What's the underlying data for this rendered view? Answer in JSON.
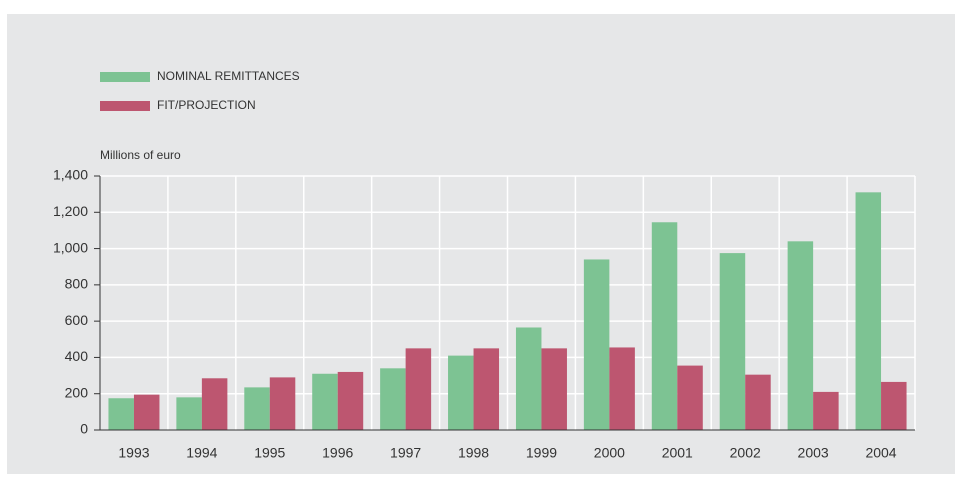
{
  "chart_data": {
    "type": "bar",
    "y_axis_label": "Millions of euro",
    "categories": [
      "1993",
      "1994",
      "1995",
      "1996",
      "1997",
      "1998",
      "1999",
      "2000",
      "2001",
      "2002",
      "2003",
      "2004"
    ],
    "series": [
      {
        "name": "NOMINAL REMITTANCES",
        "color": "#7dc393",
        "values": [
          175,
          180,
          235,
          310,
          340,
          410,
          565,
          940,
          1145,
          975,
          1040,
          1310
        ]
      },
      {
        "name": "FIT/PROJECTION",
        "color": "#bd5670",
        "values": [
          195,
          285,
          290,
          320,
          450,
          450,
          450,
          455,
          355,
          305,
          210,
          265
        ]
      }
    ],
    "ylim": [
      0,
      1400
    ],
    "yticks": [
      0,
      200,
      400,
      600,
      800,
      {
        "value": 1000,
        "label": "1,000"
      },
      {
        "value": 1200,
        "label": "1,200"
      },
      {
        "value": 1400,
        "label": "1,400"
      }
    ],
    "grid": true
  }
}
